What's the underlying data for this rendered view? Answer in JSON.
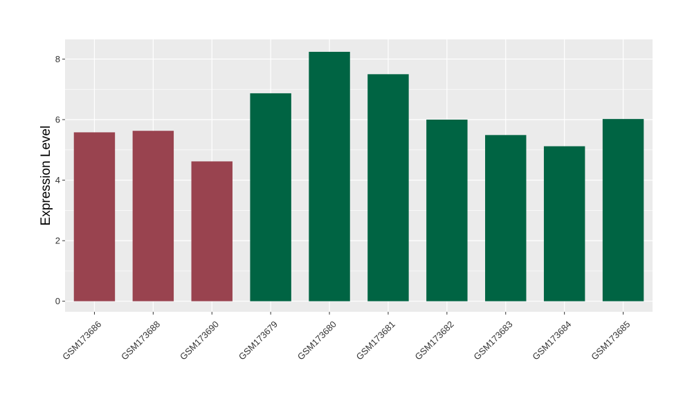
{
  "chart_data": {
    "type": "bar",
    "title": "",
    "xlabel": "",
    "ylabel": "Expression Level",
    "ylim": [
      -0.35,
      8.65
    ],
    "yticks": [
      0,
      2,
      4,
      6,
      8
    ],
    "ytick_labels": [
      "0",
      "2",
      "4",
      "6",
      "8"
    ],
    "grid": true,
    "legend": "none",
    "categories": [
      "GSM173686",
      "GSM173688",
      "GSM173690",
      "GSM173679",
      "GSM173680",
      "GSM173681",
      "GSM173682",
      "GSM173683",
      "GSM173684",
      "GSM173685"
    ],
    "values": [
      5.58,
      5.63,
      4.62,
      6.87,
      8.24,
      7.5,
      6.0,
      5.49,
      5.12,
      6.02
    ],
    "groups": [
      0,
      0,
      0,
      1,
      1,
      1,
      1,
      1,
      1,
      1
    ],
    "group_colors": [
      "#99434F",
      "#006443"
    ]
  },
  "colors": {
    "panel_background": "#EBEBEB",
    "grid": "#FFFFFF",
    "tick": "#333333"
  }
}
